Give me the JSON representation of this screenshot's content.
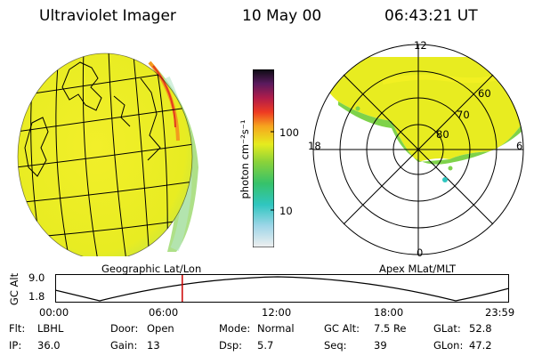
{
  "header": {
    "title": "Ultraviolet Imager",
    "date": "10 May 00",
    "time": "06:43:21 UT"
  },
  "colorbar": {
    "unit_label": "photon cm⁻²s⁻¹",
    "tick_100": "100",
    "tick_10": "10"
  },
  "polar": {
    "mlt_labels": {
      "top": "12",
      "left": "18",
      "right": "6",
      "bottom": "0"
    },
    "lat_labels": [
      "60",
      "70",
      "80"
    ]
  },
  "panel_labels": {
    "left": "Geographic Lat/Lon",
    "right": "Apex MLat/MLT"
  },
  "altitude_plot": {
    "axis_label": "GC Alt",
    "y_ticks": [
      "9.0",
      "1.8"
    ],
    "x_ticks": [
      "00:00",
      "06:00",
      "12:00",
      "18:00",
      "23:59"
    ],
    "current_time_fraction": 0.28
  },
  "info": [
    [
      {
        "label": "Flt:",
        "value": "LBHL"
      },
      {
        "label": "Door:",
        "value": "Open"
      },
      {
        "label": "Mode:",
        "value": "Normal"
      },
      {
        "label": "GC Alt:",
        "value": "7.5 Re"
      },
      {
        "label": "GLat:",
        "value": "52.8"
      }
    ],
    [
      {
        "label": "IP:",
        "value": "36.0"
      },
      {
        "label": "Gain:",
        "value": "13"
      },
      {
        "label": "Dsp:",
        "value": "5.7"
      },
      {
        "label": "Seq:",
        "value": "39"
      },
      {
        "label": "GLon:",
        "value": "47.2"
      }
    ]
  ],
  "colors": {
    "accent_red": "#cc0000",
    "image_yellow": "#e6ec1e",
    "image_green": "#7ed24a"
  }
}
